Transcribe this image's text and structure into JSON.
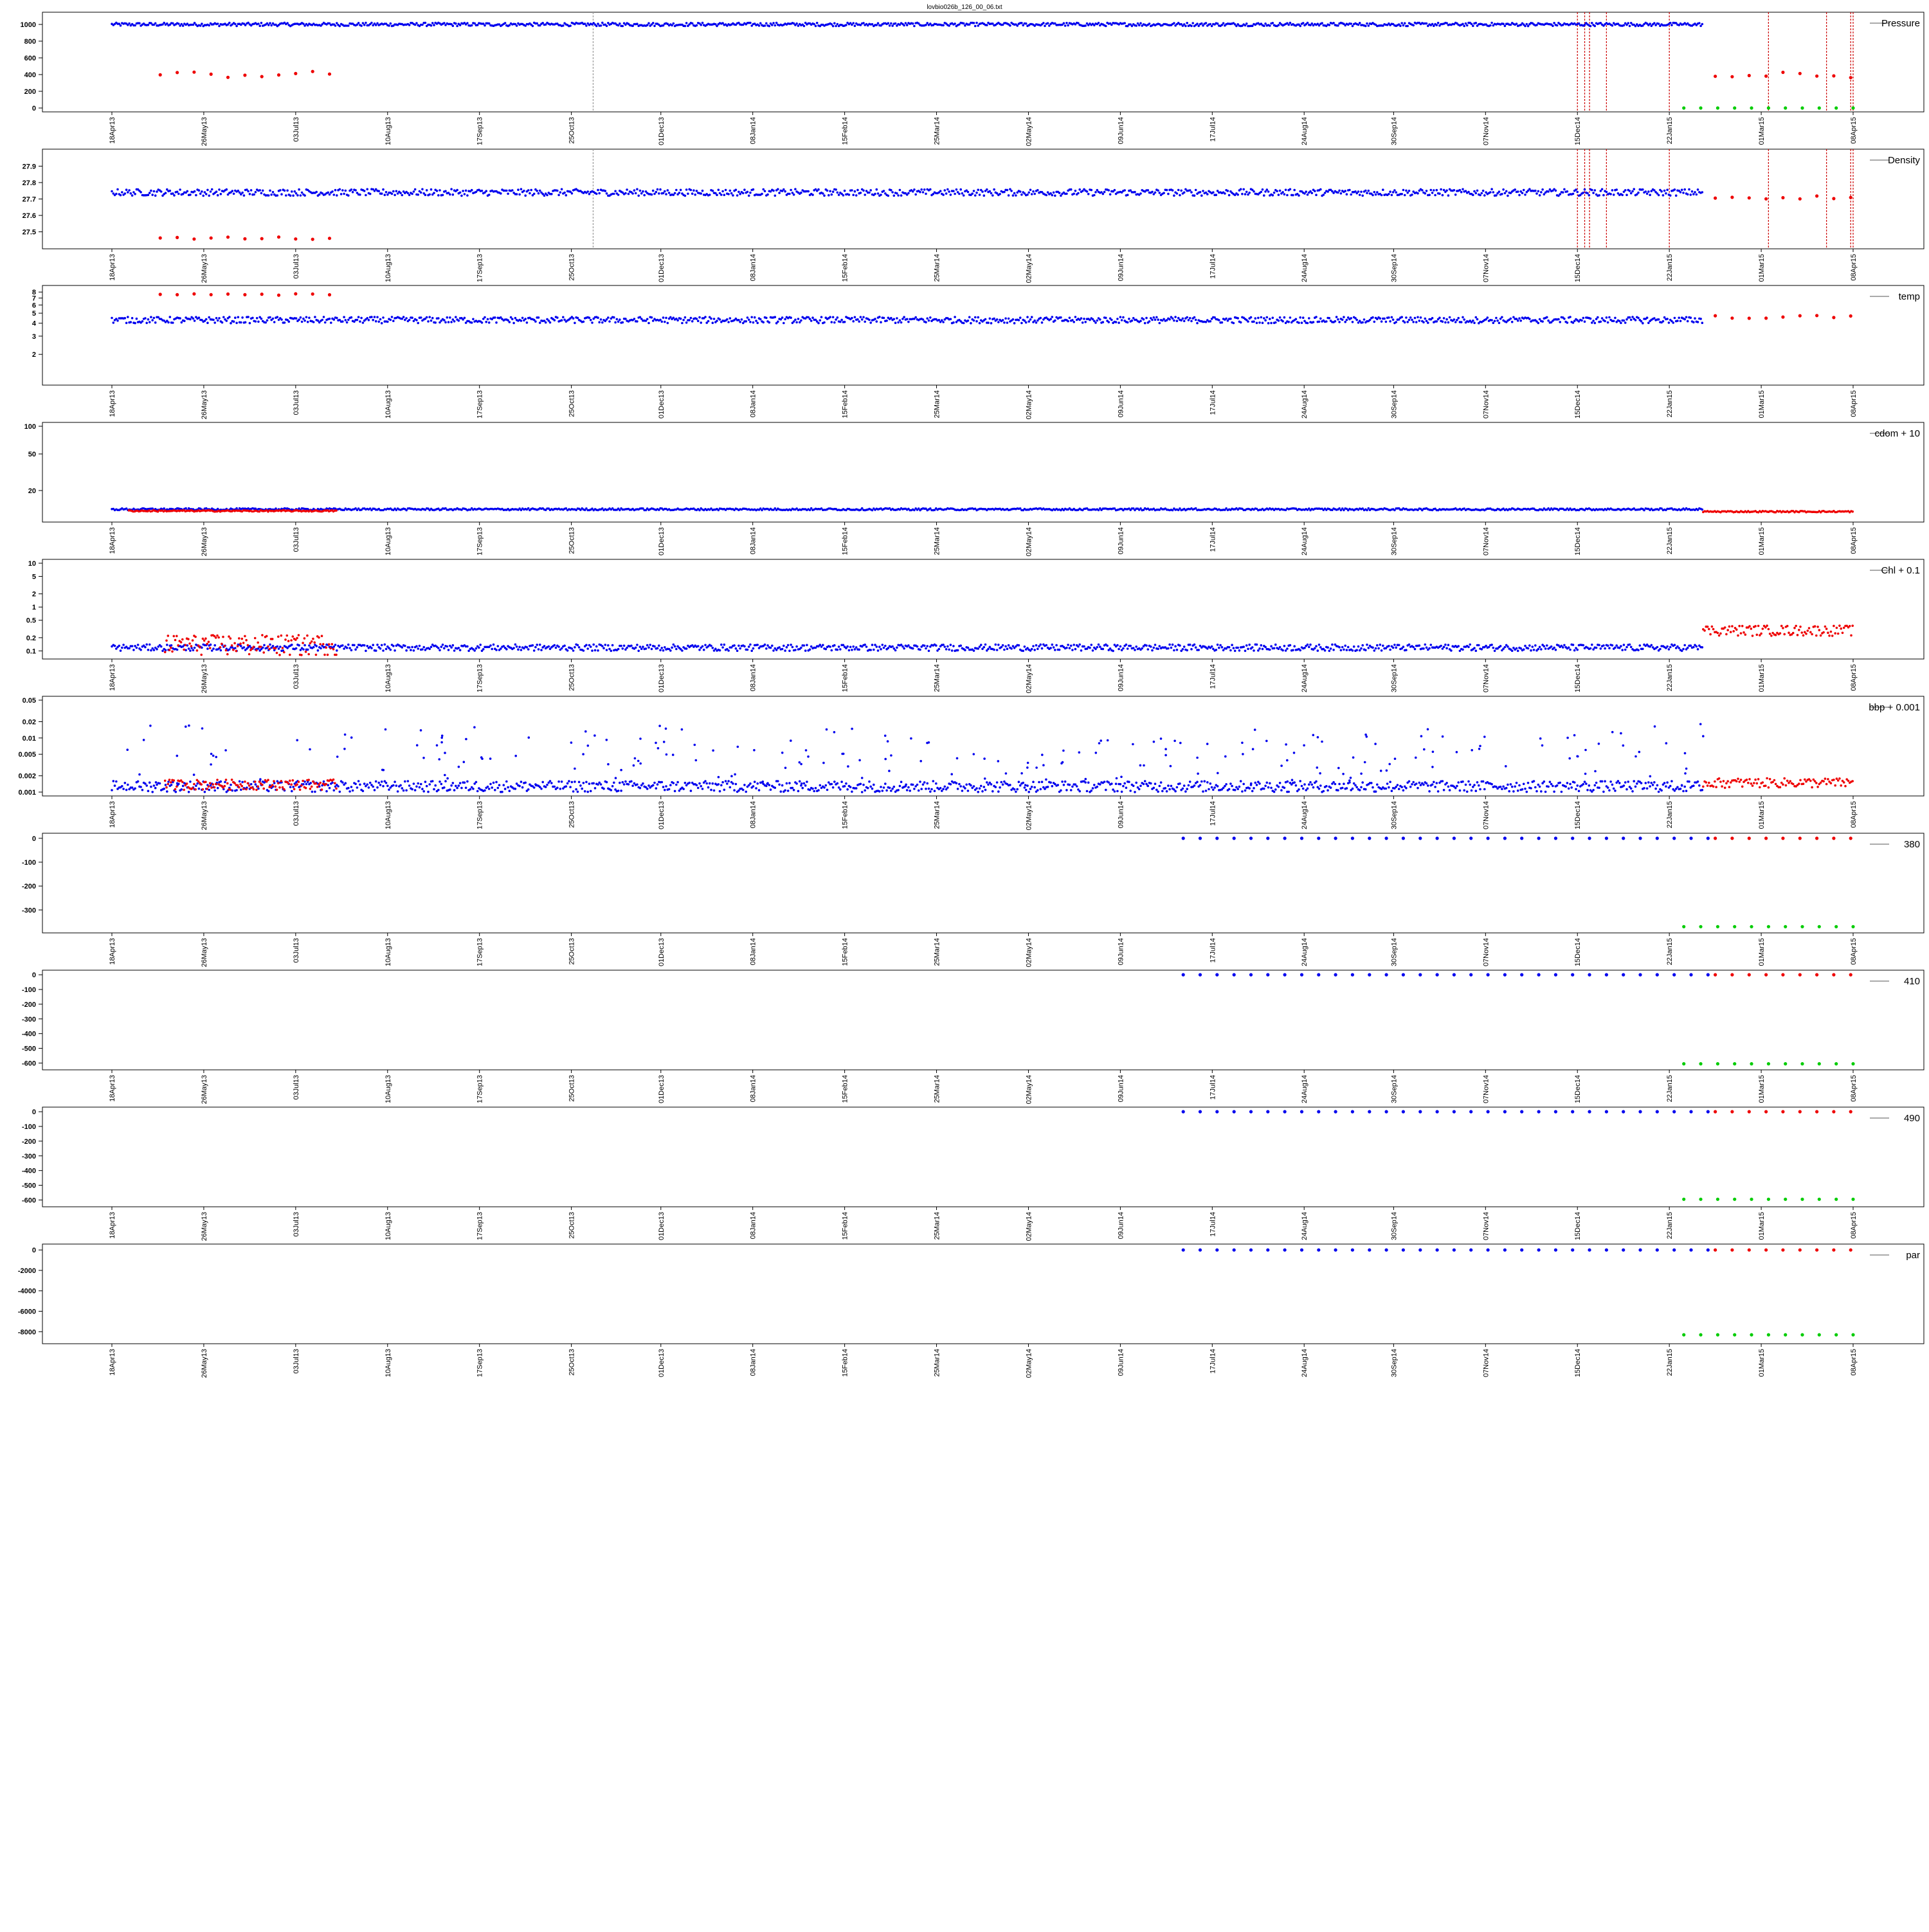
{
  "title": "lovbio026b_126_00_06.txt",
  "colors": {
    "series_a": "#0000ee",
    "series_b": "#ee0000",
    "series_c": "#00cc00",
    "vline": "#999999",
    "vline_event": "#cc0000"
  },
  "date_axis_labels": [
    "18Apr13",
    "26May13",
    "03Jul13",
    "10Aug13",
    "17Sep13",
    "25Oct13",
    "01Dec13",
    "08Jan14",
    "15Feb14",
    "25Mar14",
    "02May14",
    "09Jun14",
    "17Jul14",
    "24Aug14",
    "30Sep14",
    "07Nov14",
    "15Dec14",
    "22Jan15",
    "01Mar15",
    "08Apr15"
  ],
  "chart_data": [
    {
      "type": "scatter",
      "legend": "Pressure",
      "legend_position": "top-right",
      "scale": "linear",
      "ylim": [
        0,
        1100
      ],
      "yticks": [
        0,
        200,
        400,
        600,
        800,
        1000
      ],
      "xlim": [
        "2013-04-18",
        "2015-04-08"
      ],
      "series": [
        {
          "color": "series_a",
          "segments": [
            [
              "2013-04-18",
              "2015-02-05",
              1000
            ]
          ],
          "noise": 20
        },
        {
          "color": "series_b",
          "segments": [
            [
              "2013-05-08",
              "2013-07-20",
              400
            ],
            [
              "2015-02-10",
              "2015-04-08",
              390
            ]
          ],
          "noise": 40,
          "sparse": true
        },
        {
          "color": "series_c",
          "segments": [
            [
              "2015-01-28",
              "2015-04-08",
              0
            ]
          ],
          "noise": 0,
          "sparse": true
        }
      ],
      "vlines": [
        "2013-11-03",
        "2014-12-15",
        "2014-12-18",
        "2014-12-20",
        "2014-12-27",
        "2015-01-22",
        "2015-03-04",
        "2015-03-28",
        "2015-04-07",
        "2015-04-08"
      ]
    },
    {
      "type": "scatter",
      "legend": "Density",
      "legend_position": "top-right",
      "scale": "linear",
      "ylim": [
        27.42,
        27.98
      ],
      "yticks": [
        27.5,
        27.6,
        27.7,
        27.8,
        27.9
      ],
      "xlim": [
        "2013-04-18",
        "2015-04-08"
      ],
      "series": [
        {
          "color": "series_a",
          "segments": [
            [
              "2013-04-18",
              "2015-02-05",
              27.74
            ]
          ],
          "noise": 0.02
        },
        {
          "color": "series_b",
          "segments": [
            [
              "2013-05-08",
              "2013-07-20",
              27.46
            ],
            [
              "2015-02-10",
              "2015-04-08",
              27.71
            ]
          ],
          "noise": 0.01,
          "sparse": true
        }
      ],
      "vlines": [
        "2013-11-03",
        "2014-12-15",
        "2014-12-18",
        "2014-12-20",
        "2014-12-27",
        "2015-01-22",
        "2015-03-04",
        "2015-03-28",
        "2015-04-07",
        "2015-04-08"
      ]
    },
    {
      "type": "scatter",
      "legend": "temp",
      "legend_position": "top-right",
      "scale": "log",
      "ylim": [
        1.1,
        8.5
      ],
      "yticks": [
        2,
        3,
        4,
        5,
        6,
        7,
        8
      ],
      "xlim": [
        "2013-04-18",
        "2015-04-08"
      ],
      "series": [
        {
          "color": "series_a",
          "segments": [
            [
              "2013-04-18",
              "2015-02-05",
              4.3
            ]
          ],
          "noise": 0.3
        },
        {
          "color": "series_b",
          "segments": [
            [
              "2013-05-08",
              "2013-07-20",
              7.6
            ],
            [
              "2015-02-10",
              "2015-04-08",
              4.6
            ]
          ],
          "noise": 0.15,
          "sparse": true
        }
      ],
      "vlines": []
    },
    {
      "type": "scatter",
      "legend": "cdom + 10",
      "legend_position": "top-right",
      "scale": "log",
      "ylim": [
        10,
        100
      ],
      "yticks": [
        20,
        50,
        100
      ],
      "xlim": [
        "2013-04-18",
        "2015-04-08"
      ],
      "series": [
        {
          "color": "series_a",
          "segments": [
            [
              "2013-04-18",
              "2015-02-05",
              12.5
            ]
          ],
          "noise": 0.3
        },
        {
          "color": "series_b",
          "segments": [
            [
              "2013-04-25",
              "2013-07-20",
              12
            ],
            [
              "2015-02-05",
              "2015-04-08",
              11.8
            ]
          ],
          "noise": 0.2
        }
      ],
      "vlines": []
    },
    {
      "type": "scatter",
      "legend": "Chl + 0.1",
      "legend_position": "top-right",
      "scale": "log",
      "ylim": [
        0.08,
        10
      ],
      "yticks": [
        0.1,
        0.2,
        0.5,
        1.0,
        2.0,
        5.0,
        10.0
      ],
      "xlim": [
        "2013-04-18",
        "2015-04-08"
      ],
      "series": [
        {
          "color": "series_a",
          "segments": [
            [
              "2013-04-18",
              "2015-02-05",
              0.12
            ]
          ],
          "noise": 0.02
        },
        {
          "color": "series_b",
          "segments": [
            [
              "2013-05-10",
              "2013-07-20",
              0.15
            ],
            [
              "2015-02-05",
              "2015-04-08",
              0.3
            ]
          ],
          "noise": 0.08
        }
      ],
      "vlines": []
    },
    {
      "type": "scatter",
      "legend": "bbp + 0.001",
      "legend_position": "top-right",
      "scale": "log",
      "ylim": [
        0.001,
        0.05
      ],
      "yticks": [
        0.001,
        0.002,
        0.005,
        0.01,
        0.02,
        0.05
      ],
      "xlim": [
        "2013-04-18",
        "2015-04-08"
      ],
      "series": [
        {
          "color": "series_a",
          "segments": [
            [
              "2013-04-18",
              "2015-02-05",
              0.0013
            ]
          ],
          "noise": 0.0003,
          "outliers": true
        },
        {
          "color": "series_b",
          "segments": [
            [
              "2013-05-10",
              "2013-07-20",
              0.0014
            ],
            [
              "2015-02-05",
              "2015-04-08",
              0.0015
            ]
          ],
          "noise": 0.0003
        }
      ],
      "vlines": []
    },
    {
      "type": "scatter",
      "legend": "380",
      "legend_position": "top-right",
      "scale": "linear",
      "ylim": [
        -380,
        5
      ],
      "yticks": [
        -300,
        -200,
        -100,
        0
      ],
      "xlim": [
        "2013-04-18",
        "2015-04-08"
      ],
      "series": [
        {
          "color": "series_a",
          "segments": [
            [
              "2014-07-05",
              "2015-02-10",
              0
            ]
          ],
          "noise": 0,
          "sparse": true
        },
        {
          "color": "series_b",
          "segments": [
            [
              "2015-02-10",
              "2015-04-08",
              0
            ]
          ],
          "noise": 0,
          "sparse": true
        },
        {
          "color": "series_c",
          "segments": [
            [
              "2015-01-28",
              "2015-04-08",
              -370
            ]
          ],
          "noise": 0,
          "sparse": true
        }
      ],
      "vlines": []
    },
    {
      "type": "scatter",
      "legend": "410",
      "legend_position": "top-right",
      "scale": "linear",
      "ylim": [
        -620,
        5
      ],
      "yticks": [
        -600,
        -500,
        -400,
        -300,
        -200,
        -100,
        0
      ],
      "xlim": [
        "2013-04-18",
        "2015-04-08"
      ],
      "series": [
        {
          "color": "series_a",
          "segments": [
            [
              "2014-07-05",
              "2015-02-10",
              0
            ]
          ],
          "noise": 0,
          "sparse": true
        },
        {
          "color": "series_b",
          "segments": [
            [
              "2015-02-10",
              "2015-04-08",
              0
            ]
          ],
          "noise": 0,
          "sparse": true
        },
        {
          "color": "series_c",
          "segments": [
            [
              "2015-01-28",
              "2015-04-08",
              -605
            ]
          ],
          "noise": 0,
          "sparse": true
        }
      ],
      "vlines": []
    },
    {
      "type": "scatter",
      "legend": "490",
      "legend_position": "top-right",
      "scale": "linear",
      "ylim": [
        -620,
        5
      ],
      "yticks": [
        -600,
        -500,
        -400,
        -300,
        -200,
        -100,
        0
      ],
      "xlim": [
        "2013-04-18",
        "2015-04-08"
      ],
      "series": [
        {
          "color": "series_a",
          "segments": [
            [
              "2014-07-05",
              "2015-02-10",
              0
            ]
          ],
          "noise": 0,
          "sparse": true
        },
        {
          "color": "series_b",
          "segments": [
            [
              "2015-02-10",
              "2015-04-08",
              0
            ]
          ],
          "noise": 0,
          "sparse": true
        },
        {
          "color": "series_c",
          "segments": [
            [
              "2015-01-28",
              "2015-04-08",
              -595
            ]
          ],
          "noise": 0,
          "sparse": true
        }
      ],
      "vlines": []
    },
    {
      "type": "scatter",
      "legend": "par",
      "legend_position": "top-right",
      "scale": "linear",
      "ylim": [
        -8800,
        200
      ],
      "yticks": [
        -8000,
        -6000,
        -4000,
        -2000,
        0
      ],
      "xlim": [
        "2013-04-18",
        "2015-04-08"
      ],
      "series": [
        {
          "color": "series_a",
          "segments": [
            [
              "2014-07-05",
              "2015-02-10",
              0
            ]
          ],
          "noise": 0,
          "sparse": true
        },
        {
          "color": "series_b",
          "segments": [
            [
              "2015-02-10",
              "2015-04-08",
              0
            ]
          ],
          "noise": 0,
          "sparse": true
        },
        {
          "color": "series_c",
          "segments": [
            [
              "2015-01-28",
              "2015-04-08",
              -8300
            ]
          ],
          "noise": 0,
          "sparse": true
        }
      ],
      "vlines": []
    }
  ]
}
